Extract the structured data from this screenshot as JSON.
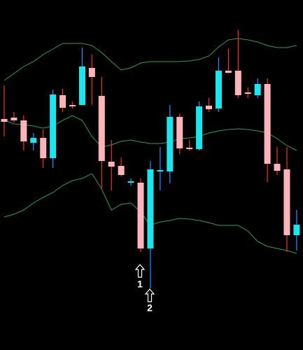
{
  "chart_data": {
    "type": "candlestick",
    "categories": [
      null,
      null,
      null,
      null,
      null,
      null,
      null,
      null,
      null,
      null,
      null,
      null,
      null,
      null,
      null,
      null,
      null,
      null,
      null,
      null,
      null,
      null,
      null,
      null,
      null,
      null,
      null,
      null,
      null,
      null,
      null
    ],
    "open": [
      330,
      332,
      328,
      296,
      303,
      274,
      364,
      350,
      350,
      403,
      363,
      269,
      263,
      239,
      239,
      145,
      255,
      255,
      333,
      289,
      287,
      349,
      345,
      399,
      399,
      368,
      364,
      380,
      266,
      258,
      164
    ],
    "high": [
      378,
      340,
      335,
      310,
      315,
      372,
      373,
      355,
      432,
      422,
      390,
      300,
      275,
      245,
      245,
      270,
      290,
      350,
      338,
      300,
      355,
      360,
      418,
      430,
      457,
      375,
      388,
      388,
      290,
      290,
      200
    ],
    "low": [
      305,
      325,
      285,
      285,
      260,
      260,
      340,
      345,
      350,
      350,
      230,
      228,
      248,
      235,
      140,
      88,
      228,
      238,
      280,
      285,
      285,
      340,
      340,
      395,
      360,
      360,
      360,
      240,
      250,
      140,
      142
    ],
    "close": [
      326,
      328,
      298,
      303,
      274,
      365,
      346,
      348,
      405,
      390,
      270,
      262,
      250,
      241,
      145,
      258,
      257,
      333,
      288,
      287,
      348,
      344,
      399,
      396,
      364,
      366,
      380,
      266,
      256,
      164,
      179
    ],
    "bands": {
      "upper": [
        385,
        395,
        405,
        412,
        422,
        430,
        438,
        438,
        438,
        435,
        425,
        412,
        400,
        403,
        410,
        412,
        412,
        412,
        412,
        413,
        415,
        420,
        433,
        443,
        445,
        443,
        440,
        435,
        432,
        432,
        435
      ],
      "middle": [
        328,
        323,
        322,
        320,
        317,
        320,
        328,
        335,
        328,
        305,
        290,
        293,
        298,
        300,
        297,
        295,
        295,
        297,
        302,
        303,
        305,
        310,
        313,
        315,
        316,
        315,
        313,
        310,
        302,
        292,
        285
      ],
      "lower": [
        190,
        194,
        200,
        210,
        218,
        225,
        235,
        242,
        245,
        252,
        230,
        200,
        208,
        210,
        197,
        178,
        183,
        185,
        188,
        187,
        185,
        182,
        178,
        178,
        178,
        170,
        155,
        148,
        145,
        142,
        138
      ]
    },
    "ylim": [
      0,
      500
    ],
    "up_color": "#19e6ef",
    "up_wick_color": "#2f8fff",
    "down_color": "#ffb3bb",
    "down_wick_color": "#ff2a2a",
    "band_color": "#2f9a5c",
    "background": "#000000",
    "annotations": [
      "1",
      "2"
    ]
  }
}
